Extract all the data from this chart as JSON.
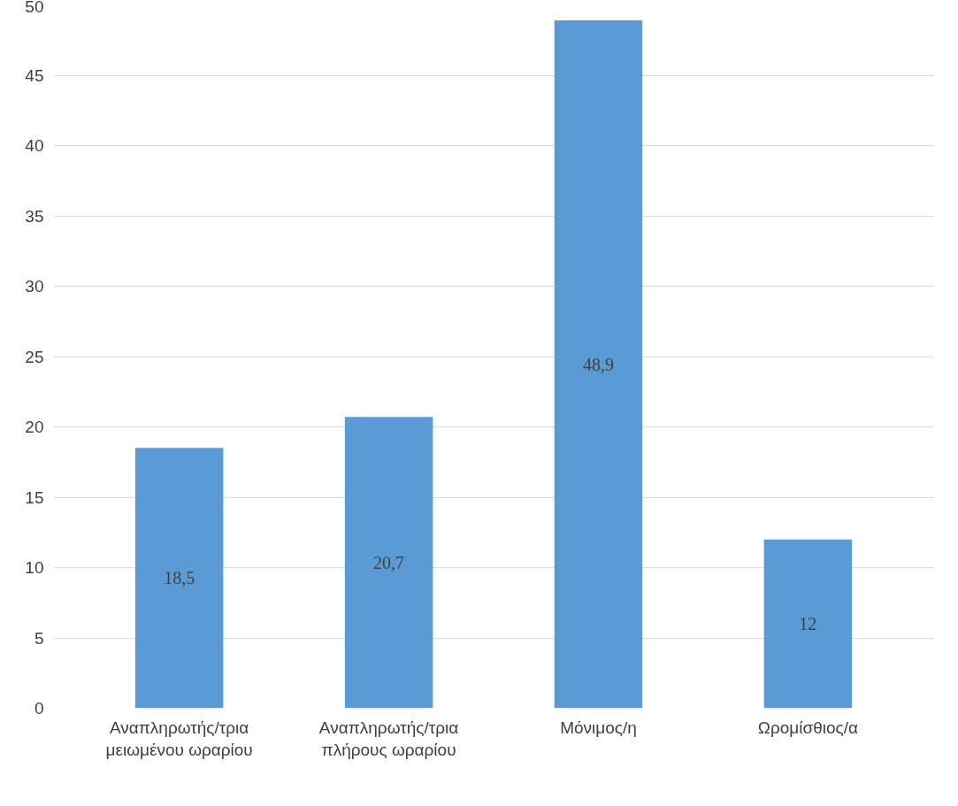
{
  "chart_data": {
    "type": "bar",
    "categories": [
      "Αναπληρωτής/τρια μειωμένου ωραρίου",
      "Αναπληρωτής/τρια πλήρους ωραρίου",
      "Μόνιμος/η",
      "Ωρομίσθιος/α"
    ],
    "values": [
      18.5,
      20.7,
      48.9,
      12
    ],
    "value_labels": [
      "18,5",
      "20,7",
      "48,9",
      "12"
    ],
    "color": "#5b9bd5",
    "ylim": [
      0,
      50
    ],
    "yticks": [
      0,
      5,
      10,
      15,
      20,
      25,
      30,
      35,
      40,
      45,
      50
    ],
    "grid": "y"
  }
}
